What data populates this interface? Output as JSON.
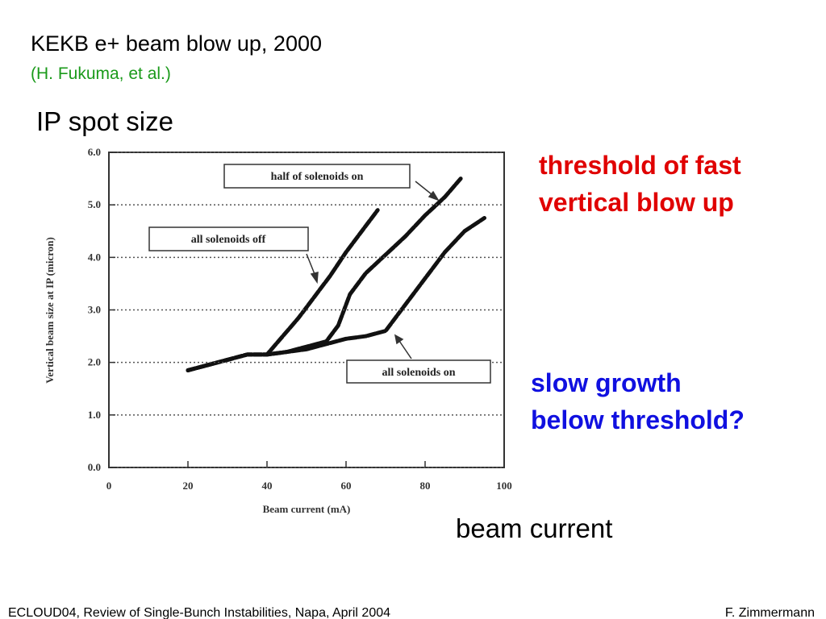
{
  "slide": {
    "title": "KEKB e+ beam blow up, 2000",
    "subtitle": "(H. Fukuma, et al.)",
    "heading": "IP spot size",
    "note_red": [
      "threshold of fast",
      "vertical blow up"
    ],
    "note_blue": [
      "slow growth",
      "below threshold?"
    ],
    "note_axis": "beam current",
    "footer_left": "ECLOUD04, Review of Single-Bunch Instabilities, Napa, April 2004",
    "footer_right": "F. Zimmermann"
  },
  "chart_data": {
    "type": "line",
    "x_label": "Beam current (mA)",
    "y_label": "Vertical beam size at IP (micron)",
    "xlim": [
      0,
      100
    ],
    "xticks": [
      0,
      20,
      40,
      60,
      80,
      100
    ],
    "ylim": [
      0,
      6
    ],
    "yticks": [
      {
        "value": 0,
        "label": "0.0"
      },
      {
        "value": 1,
        "label": "1.0"
      },
      {
        "value": 2,
        "label": "2.0"
      },
      {
        "value": 3,
        "label": "3.0"
      },
      {
        "value": 4,
        "label": "4.0"
      },
      {
        "value": 5,
        "label": "5.0"
      },
      {
        "value": 6,
        "label": "6.0"
      }
    ],
    "grid": true,
    "series": [
      {
        "name": "all solenoids off",
        "color": "#111111",
        "x": [
          20,
          25,
          30,
          35,
          40,
          44,
          48,
          52,
          56,
          60,
          64,
          68
        ],
        "values": [
          1.85,
          1.95,
          2.05,
          2.15,
          2.15,
          2.5,
          2.85,
          3.25,
          3.65,
          4.1,
          4.5,
          4.9
        ]
      },
      {
        "name": "half of solenoids on",
        "color": "#111111",
        "x": [
          20,
          25,
          30,
          35,
          40,
          45,
          50,
          55,
          58,
          61,
          65,
          70,
          75,
          80,
          85,
          89
        ],
        "values": [
          1.85,
          1.95,
          2.05,
          2.15,
          2.15,
          2.2,
          2.3,
          2.4,
          2.7,
          3.3,
          3.7,
          4.05,
          4.4,
          4.8,
          5.15,
          5.5
        ]
      },
      {
        "name": "all solenoids on",
        "color": "#111111",
        "x": [
          20,
          25,
          30,
          35,
          40,
          45,
          50,
          55,
          60,
          65,
          70,
          75,
          80,
          85,
          90,
          95
        ],
        "values": [
          1.85,
          1.95,
          2.05,
          2.15,
          2.15,
          2.2,
          2.25,
          2.35,
          2.45,
          2.5,
          2.6,
          3.1,
          3.6,
          4.1,
          4.5,
          4.75
        ]
      }
    ]
  }
}
